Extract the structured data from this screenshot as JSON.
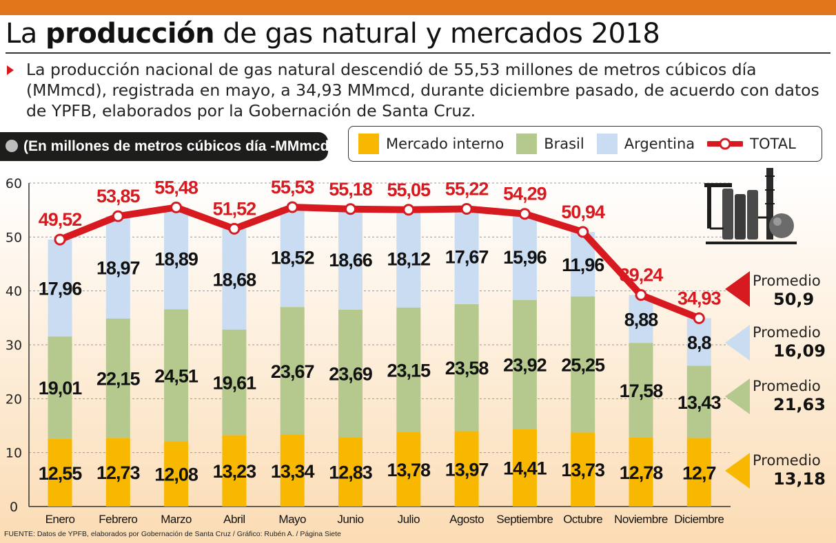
{
  "header": {
    "title_pre": "La ",
    "title_bold": "producción",
    "title_post": " de gas natural y mercados 2018",
    "subtitle": "La producción nacional de gas natural descendió de 55,53 millones de metros cúbicos día (MMmcd), registrada en mayo, a 34,93 MMmcd, durante diciembre pasado, de acuerdo con datos de YPFB, elaborados por la Gobernación de Santa Cruz.",
    "unit_label": "(En millones de metros cúbicos día -MMmcd)"
  },
  "legend": {
    "items": [
      {
        "label": "Mercado interno",
        "color": "#f9b800"
      },
      {
        "label": "Brasil",
        "color": "#b5c98e"
      },
      {
        "label": "Argentina",
        "color": "#c9dcf2"
      },
      {
        "label": "TOTAL",
        "color": "#d71920"
      }
    ]
  },
  "averages": [
    {
      "label": "Promedio",
      "value": "50,9",
      "color": "#d71920"
    },
    {
      "label": "Promedio",
      "value": "16,09",
      "color": "#c9dcf2"
    },
    {
      "label": "Promedio",
      "value": "21,63",
      "color": "#b5c98e"
    },
    {
      "label": "Promedio",
      "value": "13,18",
      "color": "#f9b800"
    }
  ],
  "source": "FUENTE: Datos de YPFB, elaborados por Gobernación de Santa Cruz / Gráfico: Rubén A. / Página Siete",
  "colors": {
    "accent_bar": "#e2761b",
    "total_line": "#d71920",
    "mercado_interno": "#f9b800",
    "brasil": "#b5c98e",
    "argentina": "#c9dcf2",
    "background_top": "#ffffff",
    "background_bottom": "#fbdcb4"
  },
  "icon": "gas-plant-icon",
  "chart_data": {
    "type": "bar",
    "stacked": true,
    "categories": [
      "Enero",
      "Febrero",
      "Marzo",
      "Abril",
      "Mayo",
      "Junio",
      "Julio",
      "Agosto",
      "Septiembre",
      "Octubre",
      "Noviembre",
      "Diciembre"
    ],
    "series": [
      {
        "name": "Mercado interno",
        "values": [
          12.55,
          12.73,
          12.08,
          13.23,
          13.34,
          12.83,
          13.78,
          13.97,
          14.41,
          13.73,
          12.78,
          12.7
        ],
        "labels": [
          "12,55",
          "12,73",
          "12,08",
          "13,23",
          "13,34",
          "12,83",
          "13,78",
          "13,97",
          "14,41",
          "13,73",
          "12,78",
          "12,7"
        ]
      },
      {
        "name": "Brasil",
        "values": [
          19.01,
          22.15,
          24.51,
          19.61,
          23.67,
          23.69,
          23.15,
          23.58,
          23.92,
          25.25,
          17.58,
          13.43
        ],
        "labels": [
          "19,01",
          "22,15",
          "24,51",
          "19,61",
          "23,67",
          "23,69",
          "23,15",
          "23,58",
          "23,92",
          "25,25",
          "17,58",
          "13,43"
        ]
      },
      {
        "name": "Argentina",
        "values": [
          17.96,
          18.97,
          18.89,
          18.68,
          18.52,
          18.66,
          18.12,
          17.67,
          15.96,
          11.96,
          8.88,
          8.8
        ],
        "labels": [
          "17,96",
          "18,97",
          "18,89",
          "18,68",
          "18,52",
          "18,66",
          "18,12",
          "17,67",
          "15,96",
          "11,96",
          "8,88",
          "8,8"
        ]
      }
    ],
    "total": {
      "name": "TOTAL",
      "type": "line",
      "values": [
        49.52,
        53.85,
        55.48,
        51.52,
        55.53,
        55.18,
        55.05,
        55.22,
        54.29,
        50.94,
        39.24,
        34.93
      ],
      "labels": [
        "49,52",
        "53,85",
        "55,48",
        "51,52",
        "55,53",
        "55,18",
        "55,05",
        "55,22",
        "54,29",
        "50,94",
        "39,24",
        "34,93"
      ]
    },
    "yticks": [
      0,
      10,
      20,
      30,
      40,
      50,
      60
    ],
    "ylim": [
      0,
      60
    ],
    "grid": true,
    "legend_position": "top-right"
  }
}
